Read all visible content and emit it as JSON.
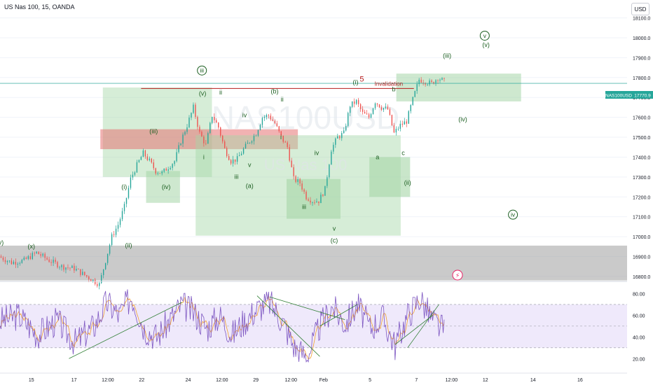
{
  "header": {
    "title": "US Nas 100, 15, OANDA",
    "currency_button": "USD"
  },
  "watermark": {
    "symbol": "NAS100USD",
    "name": "US Nas 100"
  },
  "colors": {
    "candle_up": "#26a69a",
    "candle_down": "#ef5350",
    "rsi_line": "#7e57c2",
    "rsi_ma": "#f0a030",
    "rsi_band": "#efe9fb",
    "zone_green": "#a5d6a7",
    "zone_red": "#e57373",
    "zone_gray": "#9e9e9e",
    "wave_label": "#1b5e20",
    "invalidation_line": "#b71c1c",
    "price_line": "#26a69a"
  },
  "chart_data": {
    "type": "candlestick",
    "symbol": "NAS100USD",
    "last_price_label": "NAS100USD",
    "last_price": 17770.9,
    "last_price_text": "17770.9",
    "price_axis": {
      "ticks": [
        "18100.0",
        "18000.0",
        "17900.0",
        "17800.0",
        "17700.0",
        "17600.0",
        "17500.0",
        "17400.0",
        "17300.0",
        "17200.0",
        "17100.0",
        "17000.0",
        "16900.0",
        "16800.0"
      ],
      "ylim": [
        16775,
        18190
      ]
    },
    "time_axis": {
      "ticks": [
        "15",
        "17",
        "12:00",
        "22",
        "24",
        "12:00",
        "29",
        "12:00",
        "Feb",
        "5",
        "7",
        "12:00",
        "12",
        "14",
        "16"
      ],
      "xlim": [
        0,
        100
      ]
    },
    "price_path": [
      [
        0,
        16900
      ],
      [
        2,
        16870
      ],
      [
        4,
        16880
      ],
      [
        6,
        16920
      ],
      [
        8,
        16880
      ],
      [
        10,
        16850
      ],
      [
        12,
        16840
      ],
      [
        14,
        16800
      ],
      [
        16,
        16760
      ],
      [
        17,
        16880
      ],
      [
        18,
        17000
      ],
      [
        19,
        17060
      ],
      [
        20,
        17150
      ],
      [
        21,
        17290
      ],
      [
        22,
        17360
      ],
      [
        23,
        17420
      ],
      [
        24,
        17380
      ],
      [
        25,
        17330
      ],
      [
        26,
        17320
      ],
      [
        27,
        17350
      ],
      [
        28,
        17380
      ],
      [
        29,
        17480
      ],
      [
        30,
        17560
      ],
      [
        31,
        17650
      ],
      [
        32,
        17520
      ],
      [
        33,
        17460
      ],
      [
        34,
        17610
      ],
      [
        35,
        17550
      ],
      [
        36,
        17440
      ],
      [
        37,
        17380
      ],
      [
        38,
        17390
      ],
      [
        39,
        17440
      ],
      [
        40,
        17480
      ],
      [
        41,
        17520
      ],
      [
        42,
        17600
      ],
      [
        43,
        17610
      ],
      [
        44,
        17570
      ],
      [
        45,
        17500
      ],
      [
        46,
        17450
      ],
      [
        47,
        17290
      ],
      [
        48,
        17270
      ],
      [
        49,
        17200
      ],
      [
        50,
        17180
      ],
      [
        51,
        17180
      ],
      [
        52,
        17240
      ],
      [
        53,
        17440
      ],
      [
        54,
        17500
      ],
      [
        55,
        17520
      ],
      [
        56,
        17660
      ],
      [
        57,
        17680
      ],
      [
        58,
        17620
      ],
      [
        59,
        17600
      ],
      [
        60,
        17680
      ],
      [
        61,
        17650
      ],
      [
        62,
        17640
      ],
      [
        63,
        17520
      ],
      [
        64,
        17560
      ],
      [
        65,
        17580
      ],
      [
        66,
        17690
      ],
      [
        67,
        17790
      ],
      [
        68,
        17780
      ],
      [
        69,
        17770
      ],
      [
        70,
        17800
      ],
      [
        71,
        17780
      ]
    ],
    "rsi": {
      "ticks": [
        "80.00",
        "60.00",
        "40.00",
        "20.00"
      ],
      "ylim": [
        15,
        90
      ],
      "upper": 70,
      "lower": 30,
      "path": [
        [
          0,
          55
        ],
        [
          3,
          60
        ],
        [
          6,
          42
        ],
        [
          9,
          55
        ],
        [
          12,
          35
        ],
        [
          15,
          50
        ],
        [
          17,
          72
        ],
        [
          19,
          60
        ],
        [
          21,
          78
        ],
        [
          23,
          48
        ],
        [
          25,
          40
        ],
        [
          27,
          55
        ],
        [
          29,
          70
        ],
        [
          31,
          62
        ],
        [
          33,
          48
        ],
        [
          35,
          60
        ],
        [
          37,
          42
        ],
        [
          39,
          55
        ],
        [
          41,
          66
        ],
        [
          43,
          72
        ],
        [
          45,
          55
        ],
        [
          47,
          30
        ],
        [
          49,
          22
        ],
        [
          51,
          50
        ],
        [
          53,
          68
        ],
        [
          55,
          52
        ],
        [
          57,
          70
        ],
        [
          59,
          48
        ],
        [
          61,
          58
        ],
        [
          63,
          32
        ],
        [
          65,
          60
        ],
        [
          67,
          76
        ],
        [
          69,
          55
        ],
        [
          71,
          45
        ]
      ]
    },
    "wave_labels": [
      {
        "text": "(v)",
        "x": 0,
        "price": 16960
      },
      {
        "text": "(x)",
        "x": 5,
        "price": 16940
      },
      {
        "text": "(ii)",
        "x": 20.5,
        "price": 16945
      },
      {
        "text": "(i)",
        "x": 19.8,
        "price": 17240
      },
      {
        "text": "(iii)",
        "x": 24.5,
        "price": 17520
      },
      {
        "text": "(iv)",
        "x": 26.5,
        "price": 17240
      },
      {
        "text": "(v)",
        "x": 32.3,
        "price": 17710
      },
      {
        "text": "ii",
        "x": 35.2,
        "price": 17715
      },
      {
        "text": "i",
        "x": 32.5,
        "price": 17390
      },
      {
        "text": "iii",
        "x": 37.7,
        "price": 17290
      },
      {
        "text": "iv",
        "x": 39,
        "price": 17600
      },
      {
        "text": "v",
        "x": 39.8,
        "price": 17350
      },
      {
        "text": "(a)",
        "x": 39.8,
        "price": 17245
      },
      {
        "text": "(b)",
        "x": 43.8,
        "price": 17720
      },
      {
        "text": "ii",
        "x": 45,
        "price": 17680
      },
      {
        "text": "i",
        "x": 44.8,
        "price": 17490
      },
      {
        "text": "iv",
        "x": 50.5,
        "price": 17410
      },
      {
        "text": "iii",
        "x": 48.5,
        "price": 17140
      },
      {
        "text": "v",
        "x": 53.3,
        "price": 17030
      },
      {
        "text": "(c)",
        "x": 53.3,
        "price": 16970
      },
      {
        "text": "(i)",
        "x": 56.7,
        "price": 17765
      },
      {
        "text": "5",
        "x": 57.7,
        "price": 17780
      },
      {
        "text": "b",
        "x": 62.8,
        "price": 17730
      },
      {
        "text": "a",
        "x": 60.2,
        "price": 17390
      },
      {
        "text": "c",
        "x": 64.3,
        "price": 17410
      },
      {
        "text": "(ii)",
        "x": 65,
        "price": 17260
      },
      {
        "text": "(iii)",
        "x": 71.3,
        "price": 17900
      },
      {
        "text": "(v)",
        "x": 77.5,
        "price": 17955
      },
      {
        "text": "(iv)",
        "x": 73.8,
        "price": 17580
      }
    ],
    "circled_labels": [
      {
        "text": "iii",
        "x": 32.2,
        "price": 17825
      },
      {
        "text": "v",
        "x": 77.3,
        "price": 18000
      },
      {
        "text": "iv",
        "x": 81.8,
        "price": 17100
      }
    ],
    "invalidation": {
      "text": "Invalidation",
      "x1": 22.5,
      "x2": 66,
      "price": 17745
    }
  }
}
